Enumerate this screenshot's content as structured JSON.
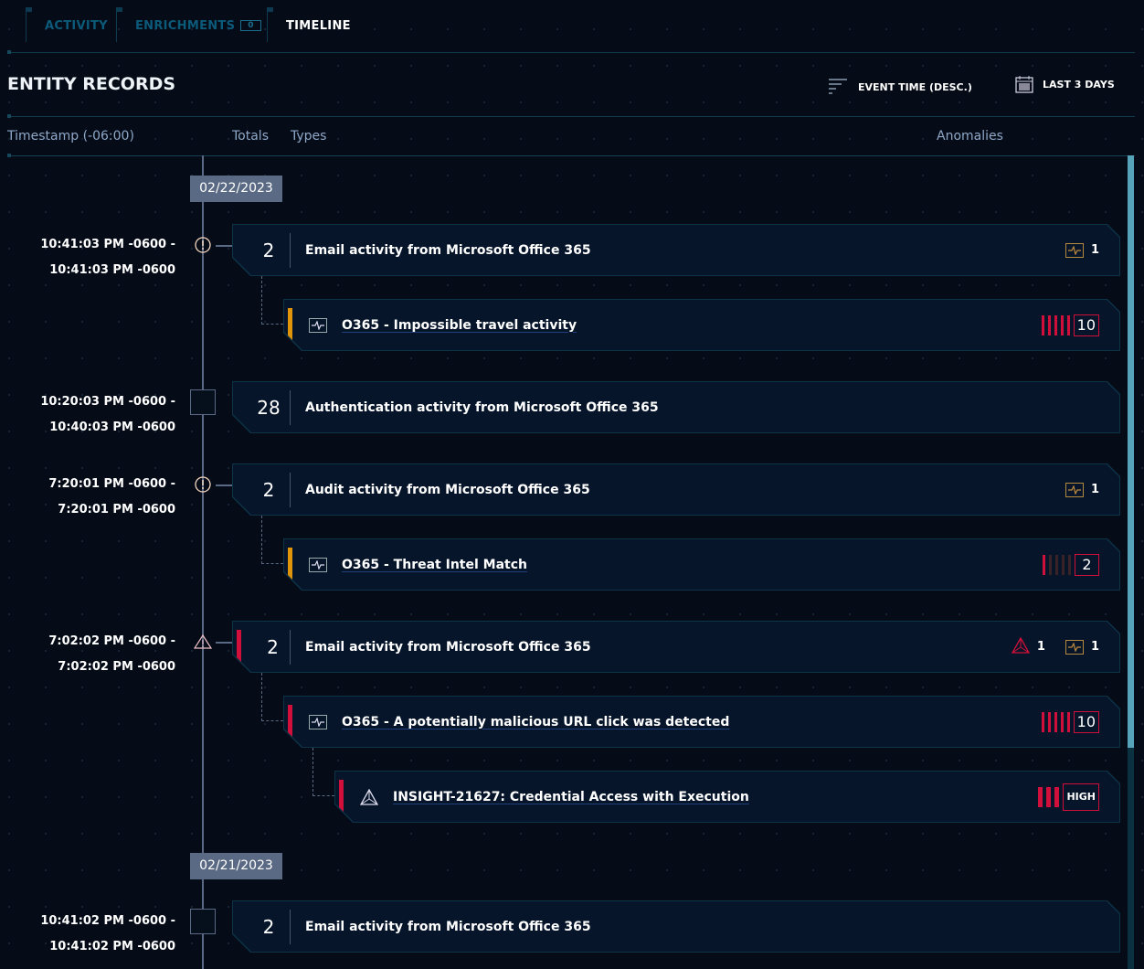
{
  "tabs": [
    {
      "label": "ACTIVITY"
    },
    {
      "label": "ENRICHMENTS",
      "badge": "0"
    },
    {
      "label": "TIMELINE",
      "active": true
    }
  ],
  "header": {
    "title": "ENTITY RECORDS",
    "sort_label": "EVENT TIME (DESC.)",
    "range_label": "LAST 3 DAYS",
    "sort_icon": "sort-lines-icon",
    "range_icon": "calendar-icon"
  },
  "columns": {
    "timestamp": "Timestamp (-06:00)",
    "totals": "Totals",
    "types": "Types",
    "anomalies": "Anomalies"
  },
  "colors": {
    "warning": "#c0622a",
    "critical": "#d0103a",
    "accent": "#57a3ba",
    "amber": "#e0940a"
  },
  "dates": [
    "02/22/2023",
    "02/21/2023"
  ],
  "records": [
    {
      "start": "10:41:03 PM -0600 -",
      "end": "10:41:03 PM -0600",
      "marker": "warning",
      "total": "2",
      "text": "Email activity from Microsoft Office 365",
      "anomaly_count": "1",
      "children": [
        {
          "text": "O365 - Impossible travel activity",
          "flag": "amber",
          "score": "10",
          "score_level": 5
        }
      ]
    },
    {
      "start": "10:20:03 PM -0600 -",
      "end": "10:40:03 PM -0600",
      "marker": "none",
      "total": "28",
      "text": "Authentication activity from Microsoft Office 365"
    },
    {
      "start": "7:20:01 PM -0600 -",
      "end": "7:20:01 PM -0600",
      "marker": "warning",
      "total": "2",
      "text": "Audit activity from Microsoft Office 365",
      "anomaly_count": "1",
      "children": [
        {
          "text": "O365 - Threat Intel Match",
          "flag": "amber",
          "score": "2",
          "score_level": 1
        }
      ]
    },
    {
      "start": "7:02:02 PM -0600 -",
      "end": "7:02:02 PM -0600",
      "marker": "critical",
      "total": "2",
      "text": "Email activity from Microsoft Office 365",
      "insight_count": "1",
      "anomaly_count": "1",
      "children": [
        {
          "text": "O365 - A potentially malicious URL click was detected",
          "flag": "critical",
          "score": "10",
          "score_level": 5
        },
        {
          "text": "INSIGHT-21627: Credential Access with Execution",
          "flag": "critical",
          "severity": "HIGH",
          "icon": "insight",
          "level": 3
        }
      ]
    },
    {
      "start": "10:41:02 PM -0600 -",
      "end": "10:41:02 PM -0600",
      "marker": "none",
      "total": "2",
      "text": "Email activity from Microsoft Office 365"
    }
  ]
}
